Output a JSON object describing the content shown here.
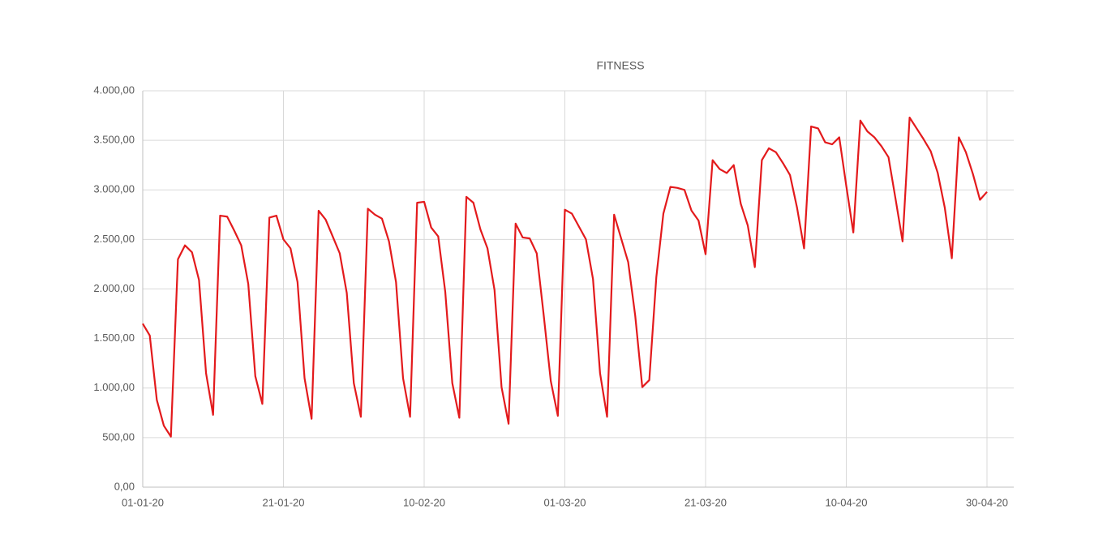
{
  "chart_data": {
    "type": "line",
    "title": "FITNESS",
    "categories": [
      "01-01-20",
      null,
      null,
      null,
      null,
      null,
      null,
      null,
      null,
      null,
      null,
      null,
      null,
      null,
      null,
      null,
      null,
      null,
      null,
      null,
      "21-01-20",
      null,
      null,
      null,
      null,
      null,
      null,
      null,
      null,
      null,
      null,
      null,
      null,
      null,
      null,
      null,
      null,
      null,
      null,
      null,
      "10-02-20",
      null,
      null,
      null,
      null,
      null,
      null,
      null,
      null,
      null,
      null,
      null,
      null,
      null,
      null,
      null,
      null,
      null,
      null,
      null,
      "01-03-20",
      null,
      null,
      null,
      null,
      null,
      null,
      null,
      null,
      null,
      null,
      null,
      null,
      null,
      null,
      null,
      null,
      null,
      null,
      null,
      "21-03-20",
      null,
      null,
      null,
      null,
      null,
      null,
      null,
      null,
      null,
      null,
      null,
      null,
      null,
      null,
      null,
      null,
      null,
      null,
      null,
      "10-04-20",
      null,
      null,
      null,
      null,
      null,
      null,
      null,
      null,
      null,
      null,
      null,
      null,
      null,
      null,
      null,
      null,
      null,
      null,
      null,
      "30-04-20"
    ],
    "series": [
      {
        "name": "FITNESS",
        "color": "#e31a1c",
        "values": [
          1650,
          1530,
          880,
          620,
          510,
          2300,
          2440,
          2370,
          2090,
          1150,
          730,
          2740,
          2730,
          2590,
          2440,
          2050,
          1120,
          840,
          2720,
          2740,
          2500,
          2410,
          2070,
          1100,
          690,
          2790,
          2700,
          2530,
          2360,
          1960,
          1050,
          710,
          2810,
          2750,
          2710,
          2480,
          2070,
          1100,
          710,
          2870,
          2880,
          2620,
          2530,
          1970,
          1050,
          700,
          2930,
          2870,
          2600,
          2410,
          1990,
          1010,
          640,
          2660,
          2520,
          2510,
          2360,
          1730,
          1070,
          720,
          2800,
          2760,
          2630,
          2500,
          2100,
          1150,
          710,
          2750,
          2510,
          2270,
          1730,
          1010,
          1080,
          2120,
          2760,
          3030,
          3020,
          3000,
          2790,
          2690,
          2350,
          3300,
          3210,
          3170,
          3250,
          2860,
          2640,
          2220,
          3300,
          3420,
          3380,
          3270,
          3150,
          2820,
          2410,
          3640,
          3620,
          3480,
          3460,
          3530,
          3040,
          2570,
          3700,
          3590,
          3530,
          3440,
          3330,
          2910,
          2480,
          3730,
          3620,
          3510,
          3390,
          3170,
          2820,
          2310,
          3530,
          3380,
          3160,
          2900,
          2980
        ]
      }
    ],
    "ylim": [
      0,
      4000
    ],
    "yticks": [
      {
        "value": 0,
        "label": "0,00"
      },
      {
        "value": 500,
        "label": "500,00"
      },
      {
        "value": 1000,
        "label": "1.000,00"
      },
      {
        "value": 1500,
        "label": "1.500,00"
      },
      {
        "value": 2000,
        "label": "2.000,00"
      },
      {
        "value": 2500,
        "label": "2.500,00"
      },
      {
        "value": 3000,
        "label": "3.000,00"
      },
      {
        "value": 3500,
        "label": "3.500,00"
      },
      {
        "value": 4000,
        "label": "4.000,00"
      }
    ],
    "grid": true
  }
}
